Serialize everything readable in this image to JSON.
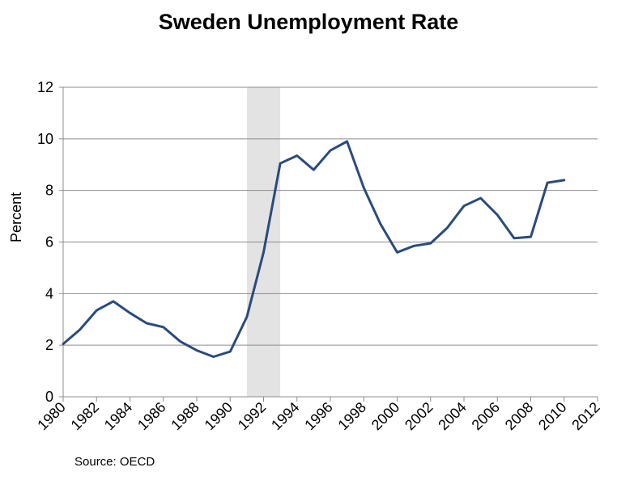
{
  "chart_data": {
    "type": "line",
    "title": "Sweden Unemployment Rate",
    "xlabel": "",
    "ylabel": "Percent",
    "source": "Source: OECD",
    "xlim": [
      1980,
      2012
    ],
    "ylim": [
      0,
      12
    ],
    "y_ticks": [
      "0",
      "2",
      "4",
      "6",
      "8",
      "10",
      "12"
    ],
    "x_ticks": [
      "1980",
      "1982",
      "1984",
      "1986",
      "1988",
      "1990",
      "1992",
      "1994",
      "1996",
      "1998",
      "2000",
      "2002",
      "2004",
      "2006",
      "2008",
      "2010",
      "2012"
    ],
    "grid": "horizontal",
    "shaded_region": {
      "x_start": 1991,
      "x_end": 1993,
      "color": "#e3e3e3"
    },
    "line_color": "#2a4b7c",
    "series": [
      {
        "x": [
          1980,
          1981,
          1982,
          1983,
          1984,
          1985,
          1986,
          1987,
          1988,
          1989,
          1990,
          1991,
          1992,
          1993,
          1994,
          1995,
          1996,
          1997,
          1998,
          1999,
          2000,
          2001,
          2002,
          2003,
          2004,
          2005,
          2006,
          2007,
          2008,
          2009,
          2010
        ],
        "values": [
          2.05,
          2.6,
          3.35,
          3.7,
          3.25,
          2.85,
          2.7,
          2.15,
          1.8,
          1.55,
          1.75,
          3.1,
          5.6,
          9.05,
          9.35,
          8.8,
          9.55,
          9.9,
          8.1,
          6.7,
          5.6,
          5.85,
          5.95,
          6.55,
          7.4,
          7.7,
          7.05,
          6.15,
          6.2,
          8.3,
          8.4
        ]
      }
    ]
  }
}
